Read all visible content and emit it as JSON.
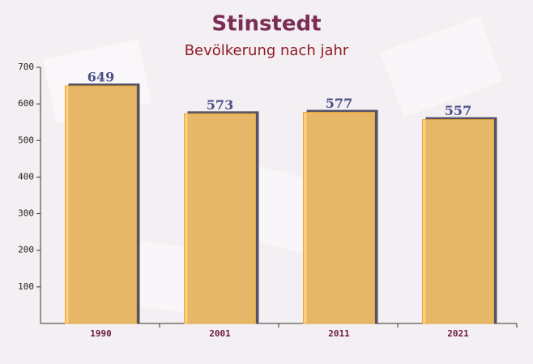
{
  "chart_data": {
    "type": "bar",
    "title": "Stinstedt",
    "subtitle": "Bevölkerung nach jahr",
    "categories": [
      "1990",
      "2001",
      "2011",
      "2021"
    ],
    "values": [
      649,
      573,
      577,
      557
    ],
    "color": "#ffc966",
    "ylim": [
      0,
      700
    ],
    "yticks": [
      100,
      200,
      300,
      400,
      500,
      600,
      700
    ]
  }
}
